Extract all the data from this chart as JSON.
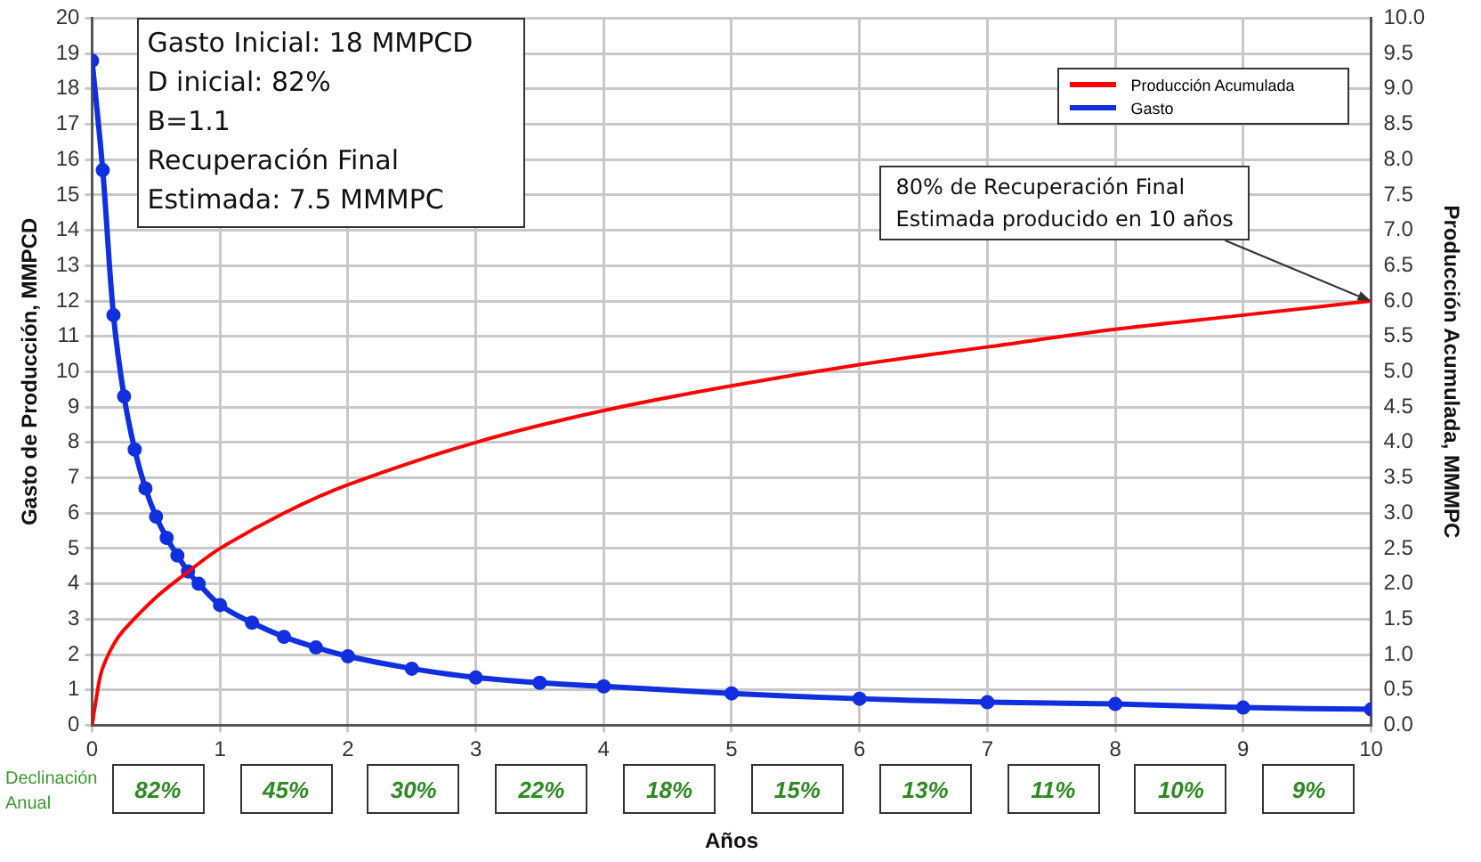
{
  "chart_data": {
    "type": "line",
    "xlabel": "Años",
    "ylabel": "Gasto de Producción, MMPCD",
    "y2label": "Producción Acumulada, MMMPC",
    "xlim": [
      0,
      10
    ],
    "xticks": [
      0,
      1,
      2,
      3,
      4,
      5,
      6,
      7,
      8,
      9,
      10
    ],
    "ylim": [
      0,
      20
    ],
    "yticks": [
      0,
      1,
      2,
      3,
      4,
      5,
      6,
      7,
      8,
      9,
      10,
      11,
      12,
      13,
      14,
      15,
      16,
      17,
      18,
      19,
      20
    ],
    "y2lim": [
      0,
      10
    ],
    "y2ticks": [
      {
        "value": 0,
        "label": "0.0"
      },
      {
        "value": 0.5,
        "label": "0.5"
      },
      {
        "value": 1,
        "label": "1.0"
      },
      {
        "value": 1.5,
        "label": "1.5"
      },
      {
        "value": 2,
        "label": "2.0"
      },
      {
        "value": 2.5,
        "label": "2.5"
      },
      {
        "value": 3,
        "label": "3.0"
      },
      {
        "value": 3.5,
        "label": "3.5"
      },
      {
        "value": 4,
        "label": "4.0"
      },
      {
        "value": 4.5,
        "label": "4.5"
      },
      {
        "value": 5,
        "label": "5.0"
      },
      {
        "value": 5.5,
        "label": "5.5"
      },
      {
        "value": 6,
        "label": "6.0"
      },
      {
        "value": 6.5,
        "label": "6.5"
      },
      {
        "value": 7,
        "label": "7.0"
      },
      {
        "value": 7.5,
        "label": "7.5"
      },
      {
        "value": 8,
        "label": "8.0"
      },
      {
        "value": 8.5,
        "label": "8.5"
      },
      {
        "value": 9,
        "label": "9.0"
      },
      {
        "value": 9.5,
        "label": "9.5"
      },
      {
        "value": 10,
        "label": "10.0"
      }
    ],
    "grid": true,
    "legend": "top right",
    "line_style": "solid",
    "series": [
      {
        "name": "Producción Acumulada",
        "color": "#ff0000",
        "axis": "y2",
        "marker": "none",
        "x": [
          0,
          0.03,
          0.075,
          0.167,
          0.25,
          0.5,
          0.75,
          1,
          1.5,
          2,
          3,
          4,
          5,
          6,
          7,
          8,
          9,
          10
        ],
        "values": [
          0,
          0.35,
          0.77,
          1.14,
          1.35,
          1.81,
          2.17,
          2.5,
          3.0,
          3.4,
          4.0,
          4.45,
          4.8,
          5.1,
          5.35,
          5.6,
          5.8,
          6.0
        ]
      },
      {
        "name": "Gasto",
        "color": "#1030e0",
        "marker": "circle",
        "x": [
          0,
          0.083,
          0.167,
          0.25,
          0.333,
          0.417,
          0.5,
          0.583,
          0.667,
          0.75,
          0.833,
          1,
          1.25,
          1.5,
          1.75,
          2,
          2.5,
          3,
          3.5,
          4,
          5,
          6,
          7,
          8,
          9,
          10
        ],
        "values": [
          18.8,
          15.7,
          11.6,
          9.3,
          7.8,
          6.7,
          5.9,
          5.3,
          4.8,
          4.35,
          4.0,
          3.4,
          2.9,
          2.5,
          2.2,
          1.95,
          1.6,
          1.35,
          1.2,
          1.1,
          0.9,
          0.75,
          0.65,
          0.6,
          0.5,
          0.45
        ]
      }
    ],
    "annotations": [
      "Gasto Inicial: 18 MMPCD\nD inicial: 82%\nB=1.1\nRecuperación Final\nEstimada: 7.5 MMMPC",
      "Declinación\nAnual",
      {
        "text": "80% de Recuperación Final\nEstimada producido en 10 años",
        "x": 10,
        "y": 12
      },
      "82%",
      "45%",
      "30%",
      "22%",
      "18%",
      "15%",
      "13%",
      "11%",
      "10%",
      "9%"
    ]
  }
}
